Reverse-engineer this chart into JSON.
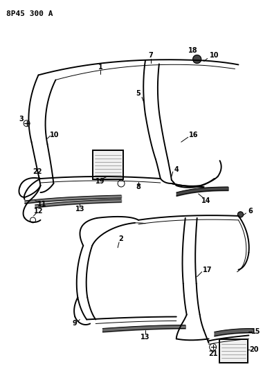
{
  "title": "8P45 300 A",
  "bg_color": "#ffffff",
  "line_color": "#000000",
  "title_fontsize": 8,
  "label_fontsize": 7,
  "fig_width": 3.93,
  "fig_height": 5.33,
  "dpi": 100
}
